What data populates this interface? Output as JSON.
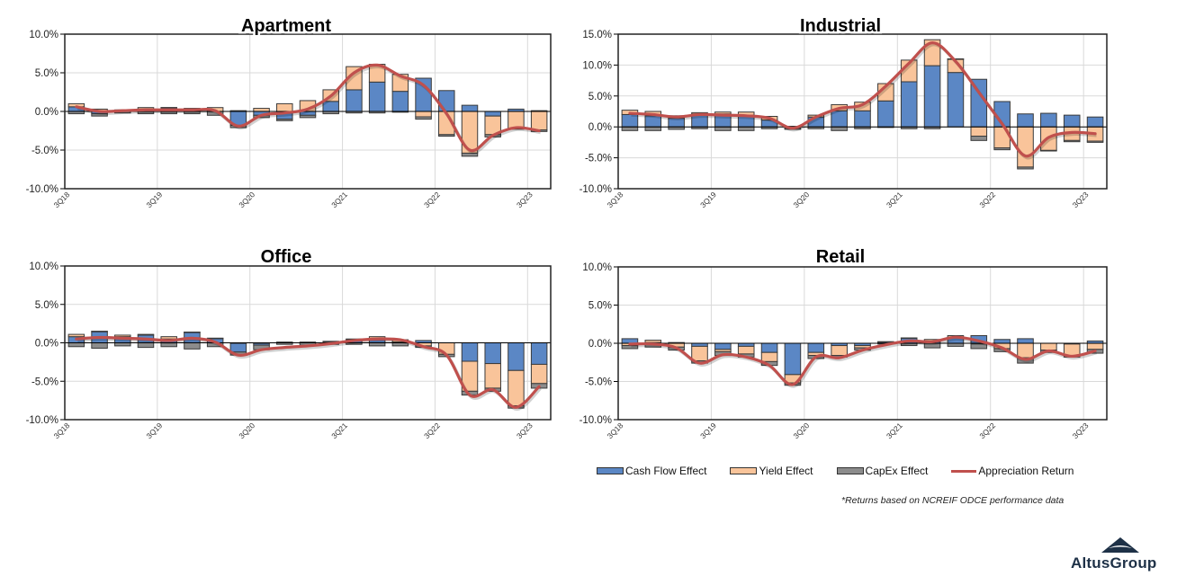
{
  "colors": {
    "cash_flow": "#5b87c5",
    "yield": "#f9c49a",
    "capex": "#8c8c8c",
    "appreciation": "#c0504d",
    "bar_border": "#3a3a3a",
    "grid": "#d9d9d9",
    "logo": "#1e3147"
  },
  "legend": [
    {
      "name": "cash-flow",
      "label": "Cash Flow Effect",
      "type": "bar",
      "color_key": "cash_flow"
    },
    {
      "name": "yield",
      "label": "Yield Effect",
      "type": "bar",
      "color_key": "yield"
    },
    {
      "name": "capex",
      "label": "CapEx Effect",
      "type": "bar",
      "color_key": "capex"
    },
    {
      "name": "appreciation",
      "label": "Appreciation Return",
      "type": "line",
      "color_key": "appreciation"
    }
  ],
  "footnote": "*Returns based on NCREIF ODCE performance data",
  "logo": {
    "text_a": "Altus",
    "text_b": "Group"
  },
  "chart_data": [
    {
      "type": "bar",
      "stacked": true,
      "title": "Apartment",
      "xlabel": "",
      "ylabel": "",
      "ylim": [
        -10,
        10
      ],
      "yticks": [
        -10,
        -5,
        0,
        5,
        10
      ],
      "ytick_labels": [
        "-10.0%",
        "-5.0%",
        "0.0%",
        "5.0%",
        "10.0%"
      ],
      "grid": true,
      "categories": [
        "3Q18",
        "4Q18",
        "1Q19",
        "2Q19",
        "3Q19",
        "4Q19",
        "1Q20",
        "2Q20",
        "3Q20",
        "4Q20",
        "1Q21",
        "2Q21",
        "3Q21",
        "4Q21",
        "1Q22",
        "2Q22",
        "3Q22",
        "4Q22",
        "1Q23",
        "2Q23",
        "3Q23"
      ],
      "xtick_labels": [
        "3Q18",
        "3Q19",
        "3Q20",
        "3Q21",
        "3Q22",
        "3Q23"
      ],
      "series": [
        {
          "name": "Cash Flow Effect",
          "kind": "bar",
          "values": [
            0.6,
            -0.3,
            0.1,
            0.3,
            0.5,
            0.2,
            0.0,
            -1.8,
            -0.5,
            -1.0,
            -0.5,
            1.3,
            2.8,
            3.8,
            2.6,
            4.3,
            2.7,
            0.8,
            -0.6,
            0.3,
            0.1
          ]
        },
        {
          "name": "Yield Effect",
          "kind": "bar",
          "values": [
            0.4,
            0.3,
            0.1,
            0.2,
            0.0,
            0.2,
            0.5,
            0.1,
            0.4,
            1.0,
            1.4,
            1.5,
            3.0,
            2.3,
            2.2,
            -0.7,
            -3.0,
            -5.4,
            -2.4,
            -2.2,
            -2.4
          ]
        },
        {
          "name": "CapEx Effect",
          "kind": "bar",
          "values": [
            -0.3,
            -0.3,
            -0.2,
            -0.3,
            -0.3,
            -0.3,
            -0.5,
            -0.3,
            -0.3,
            -0.2,
            -0.3,
            -0.3,
            -0.2,
            -0.2,
            -0.1,
            -0.3,
            -0.2,
            -0.4,
            -0.3,
            -0.1,
            -0.2
          ]
        },
        {
          "name": "Appreciation Return",
          "kind": "line",
          "values": [
            0.6,
            0.0,
            0.1,
            0.2,
            0.2,
            0.2,
            0.1,
            -1.9,
            -0.5,
            -0.2,
            0.3,
            2.0,
            5.0,
            6.0,
            4.6,
            3.4,
            -0.3,
            -5.0,
            -3.1,
            -2.1,
            -2.5
          ]
        }
      ]
    },
    {
      "type": "bar",
      "stacked": true,
      "title": "Industrial",
      "xlabel": "",
      "ylabel": "",
      "ylim": [
        -10,
        15
      ],
      "yticks": [
        -10,
        -5,
        0,
        5,
        10,
        15
      ],
      "ytick_labels": [
        "-10.0%",
        "-5.0%",
        "0.0%",
        "5.0%",
        "10.0%",
        "15.0%"
      ],
      "grid": true,
      "categories": [
        "3Q18",
        "4Q18",
        "1Q19",
        "2Q19",
        "3Q19",
        "4Q19",
        "1Q20",
        "2Q20",
        "3Q20",
        "4Q20",
        "1Q21",
        "2Q21",
        "3Q21",
        "4Q21",
        "1Q22",
        "2Q22",
        "3Q22",
        "4Q22",
        "1Q23",
        "2Q23",
        "3Q23"
      ],
      "xtick_labels": [
        "3Q18",
        "3Q19",
        "3Q20",
        "3Q21",
        "3Q22",
        "3Q23"
      ],
      "series": [
        {
          "name": "Cash Flow Effect",
          "kind": "bar",
          "values": [
            2.0,
            1.8,
            1.4,
            2.1,
            2.1,
            1.9,
            1.1,
            0.1,
            1.6,
            2.6,
            2.6,
            4.2,
            7.3,
            9.9,
            8.8,
            7.7,
            4.1,
            2.1,
            2.2,
            1.9,
            1.6
          ]
        },
        {
          "name": "Yield Effect",
          "kind": "bar",
          "values": [
            0.7,
            0.7,
            0.4,
            0.2,
            0.3,
            0.5,
            0.6,
            -0.2,
            0.3,
            1.0,
            1.4,
            2.8,
            3.5,
            4.2,
            2.2,
            -1.5,
            -3.4,
            -6.5,
            -3.8,
            -2.2,
            -2.3
          ]
        },
        {
          "name": "CapEx Effect",
          "kind": "bar",
          "values": [
            -0.6,
            -0.6,
            -0.4,
            -0.3,
            -0.6,
            -0.6,
            -0.3,
            -0.2,
            -0.3,
            -0.6,
            -0.3,
            -0.1,
            -0.3,
            -0.3,
            0.0,
            -0.7,
            -0.3,
            -0.3,
            -0.1,
            -0.2,
            -0.2
          ]
        },
        {
          "name": "Appreciation Return",
          "kind": "line",
          "values": [
            2.2,
            2.0,
            1.6,
            2.0,
            1.9,
            1.8,
            1.4,
            -0.2,
            1.6,
            3.0,
            3.6,
            6.6,
            10.3,
            13.6,
            10.6,
            5.6,
            0.5,
            -4.7,
            -1.7,
            -0.9,
            -1.1
          ]
        }
      ]
    },
    {
      "type": "bar",
      "stacked": true,
      "title": "Office",
      "xlabel": "",
      "ylabel": "",
      "ylim": [
        -10,
        10
      ],
      "yticks": [
        -10,
        -5,
        0,
        5,
        10
      ],
      "ytick_labels": [
        "-10.0%",
        "-5.0%",
        "0.0%",
        "5.0%",
        "10.0%"
      ],
      "grid": true,
      "categories": [
        "3Q18",
        "4Q18",
        "1Q19",
        "2Q19",
        "3Q19",
        "4Q19",
        "1Q20",
        "2Q20",
        "3Q20",
        "4Q20",
        "1Q21",
        "2Q21",
        "3Q21",
        "4Q21",
        "1Q22",
        "2Q22",
        "3Q22",
        "4Q22",
        "1Q23",
        "2Q23",
        "3Q23"
      ],
      "xtick_labels": [
        "3Q18",
        "3Q19",
        "3Q20",
        "3Q21",
        "3Q22",
        "3Q23"
      ],
      "series": [
        {
          "name": "Cash Flow Effect",
          "kind": "bar",
          "values": [
            0.8,
            1.5,
            0.8,
            1.0,
            0.5,
            1.4,
            0.6,
            -1.2,
            -0.3,
            0.0,
            0.0,
            0.1,
            0.4,
            0.4,
            0.1,
            0.3,
            0.0,
            -2.4,
            -2.7,
            -3.6,
            -2.8
          ]
        },
        {
          "name": "Yield Effect",
          "kind": "bar",
          "values": [
            0.3,
            0.0,
            0.2,
            0.1,
            0.3,
            0.0,
            0.0,
            0.0,
            0.0,
            0.1,
            0.1,
            0.1,
            0.1,
            0.4,
            0.3,
            -0.4,
            -1.5,
            -3.9,
            -3.2,
            -4.6,
            -2.5
          ]
        },
        {
          "name": "CapEx Effect",
          "kind": "bar",
          "values": [
            -0.5,
            -0.7,
            -0.4,
            -0.6,
            -0.5,
            -0.8,
            -0.5,
            -0.4,
            -0.6,
            -0.2,
            -0.3,
            -0.2,
            -0.2,
            -0.4,
            -0.4,
            -0.2,
            -0.3,
            -0.5,
            -0.4,
            -0.3,
            -0.6
          ]
        },
        {
          "name": "Appreciation Return",
          "kind": "line",
          "values": [
            0.5,
            0.7,
            0.6,
            0.5,
            0.3,
            0.6,
            0.1,
            -1.6,
            -0.9,
            -0.6,
            -0.4,
            -0.1,
            0.3,
            0.5,
            0.4,
            -0.5,
            -1.6,
            -6.8,
            -6.1,
            -8.4,
            -5.7
          ]
        }
      ]
    },
    {
      "type": "bar",
      "stacked": true,
      "title": "Retail",
      "xlabel": "",
      "ylabel": "",
      "ylim": [
        -10,
        10
      ],
      "yticks": [
        -10,
        -5,
        0,
        5,
        10
      ],
      "ytick_labels": [
        "-10.0%",
        "-5.0%",
        "0.0%",
        "5.0%",
        "10.0%"
      ],
      "grid": true,
      "categories": [
        "3Q18",
        "4Q18",
        "1Q19",
        "2Q19",
        "3Q19",
        "4Q19",
        "1Q20",
        "2Q20",
        "3Q20",
        "4Q20",
        "1Q21",
        "2Q21",
        "3Q21",
        "4Q21",
        "1Q22",
        "2Q22",
        "3Q22",
        "4Q22",
        "1Q23",
        "2Q23",
        "3Q23"
      ],
      "xtick_labels": [
        "3Q18",
        "3Q19",
        "3Q20",
        "3Q21",
        "3Q22",
        "3Q23"
      ],
      "series": [
        {
          "name": "Cash Flow Effect",
          "kind": "bar",
          "values": [
            0.6,
            0.1,
            0.1,
            -0.4,
            -0.8,
            -0.4,
            -1.2,
            -4.1,
            -1.2,
            -0.3,
            -0.3,
            0.2,
            0.7,
            0.2,
            0.8,
            1.0,
            0.5,
            0.6,
            0.0,
            -0.1,
            0.3
          ]
        },
        {
          "name": "Yield Effect",
          "kind": "bar",
          "values": [
            -0.3,
            0.3,
            -0.5,
            -1.9,
            -0.3,
            -1.0,
            -1.2,
            -1.1,
            -0.4,
            -1.3,
            -0.3,
            0.0,
            0.0,
            0.3,
            0.2,
            -0.1,
            -0.7,
            -1.9,
            -0.9,
            -1.5,
            -0.8
          ]
        },
        {
          "name": "CapEx Effect",
          "kind": "bar",
          "values": [
            -0.4,
            -0.5,
            -0.4,
            -0.3,
            -0.5,
            -0.4,
            -0.5,
            -0.3,
            -0.4,
            -0.2,
            -0.3,
            -0.1,
            -0.3,
            -0.6,
            -0.4,
            -0.6,
            -0.4,
            -0.7,
            -0.3,
            -0.2,
            -0.5
          ]
        },
        {
          "name": "Appreciation Return",
          "kind": "line",
          "values": [
            -0.1,
            -0.1,
            -0.6,
            -2.6,
            -1.5,
            -1.8,
            -2.9,
            -5.4,
            -1.8,
            -1.9,
            -0.9,
            -0.2,
            0.3,
            0.2,
            0.8,
            0.3,
            -0.6,
            -2.1,
            -1.0,
            -1.7,
            -1.0
          ]
        }
      ]
    }
  ]
}
